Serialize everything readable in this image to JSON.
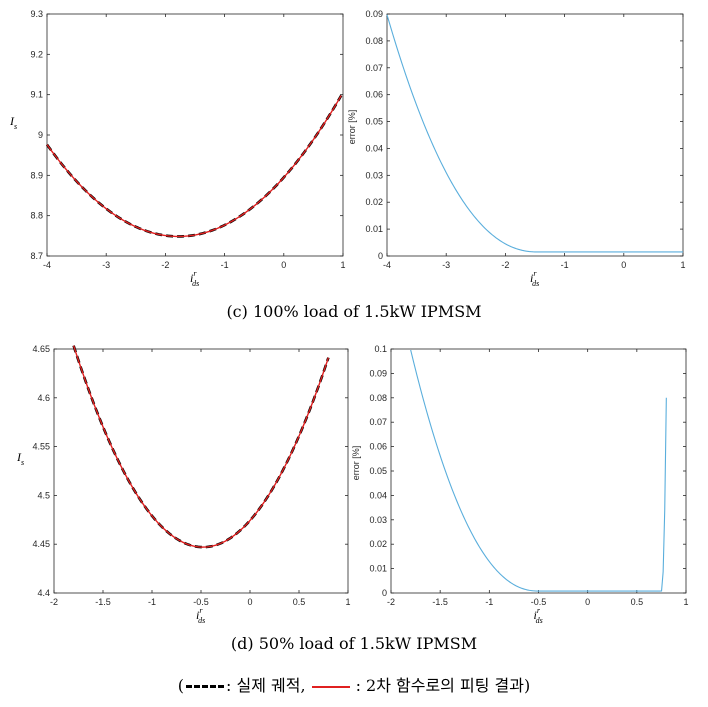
{
  "captions": {
    "c": "(c) 100% load of 1.5kW IPMSM",
    "d": "(d) 50% load of 1.5kW IPMSM"
  },
  "legend": {
    "open": "(",
    "actual": ": 실제 궤적,",
    "fit": ": 2차 함수로의 피팅 결과)"
  },
  "colors": {
    "actual": "#000000",
    "fit": "#e02020",
    "error": "#5aaedc"
  },
  "chart_data": [
    {
      "id": "c-left",
      "type": "line",
      "xlabel_main": "i",
      "xlabel_sup": "r",
      "xlabel_sub": "ds",
      "ylabel_main": "I",
      "ylabel_sub": "s",
      "xlim": [
        -4,
        1
      ],
      "ylim": [
        8.7,
        9.3
      ],
      "xticks": [
        -4,
        -3,
        -2,
        -1,
        0,
        1
      ],
      "yticks": [
        8.7,
        8.8,
        8.9,
        9.0,
        9.1,
        9.2,
        9.3
      ],
      "ytick_labels": [
        "8.7",
        "8.8",
        "8.9",
        "9",
        "9.1",
        "9.2",
        "9.3"
      ],
      "grid": false,
      "series": [
        {
          "role": "actual",
          "style": "dashed",
          "quad": [
            8.7485,
            -1.78,
            0.0462
          ],
          "xrange": [
            -4,
            0.97
          ]
        },
        {
          "role": "fit",
          "style": "solid",
          "quad": [
            8.7485,
            -1.78,
            0.0462
          ],
          "xrange": [
            -4,
            0.97
          ]
        }
      ]
    },
    {
      "id": "c-right",
      "type": "line",
      "xlabel_main": "i",
      "xlabel_sup": "r",
      "xlabel_sub": "ds",
      "ylabel": "error [%]",
      "xlim": [
        -4,
        1
      ],
      "ylim": [
        0,
        0.09
      ],
      "xticks": [
        -4,
        -3,
        -2,
        -1,
        0,
        1
      ],
      "yticks": [
        0,
        0.01,
        0.02,
        0.03,
        0.04,
        0.05,
        0.06,
        0.07,
        0.08,
        0.09
      ],
      "ytick_labels": [
        "0",
        "0.01",
        "0.02",
        "0.03",
        "0.04",
        "0.05",
        "0.06",
        "0.07",
        "0.08",
        "0.09"
      ],
      "grid": false,
      "series": [
        {
          "role": "error",
          "style": "solid",
          "quartic": [
            0.0015,
            -1.45,
            1.15,
            0.0858
          ],
          "xrange": [
            -4,
            1
          ]
        }
      ]
    },
    {
      "id": "d-left",
      "type": "line",
      "xlabel_main": "i",
      "xlabel_sup": "r",
      "xlabel_sub": "ds",
      "ylabel_main": "I",
      "ylabel_sub": "s",
      "xlim": [
        -2,
        1
      ],
      "ylim": [
        4.4,
        4.65
      ],
      "xticks": [
        -2,
        -1.5,
        -1,
        -0.5,
        0,
        0.5,
        1
      ],
      "yticks": [
        4.4,
        4.45,
        4.5,
        4.55,
        4.6,
        4.65
      ],
      "ytick_labels": [
        "4.4",
        "4.45",
        "4.5",
        "4.55",
        "4.6",
        "4.65"
      ],
      "grid": false,
      "series": [
        {
          "role": "actual",
          "style": "dashed",
          "quad": [
            4.447,
            -0.48,
            0.1185
          ],
          "xrange": [
            -1.8,
            0.8
          ]
        },
        {
          "role": "fit",
          "style": "solid",
          "quad": [
            4.447,
            -0.48,
            0.1185
          ],
          "xrange": [
            -1.8,
            0.8
          ]
        }
      ]
    },
    {
      "id": "d-right",
      "type": "line",
      "xlabel_main": "i",
      "xlabel_sup": "r",
      "xlabel_sub": "ds",
      "ylabel": "error [%]",
      "xlim": [
        -2,
        1
      ],
      "ylim": [
        0,
        0.1
      ],
      "xticks": [
        -2,
        -1.5,
        -1,
        -0.5,
        0,
        0.5,
        1
      ],
      "yticks": [
        0,
        0.01,
        0.02,
        0.03,
        0.04,
        0.05,
        0.06,
        0.07,
        0.08,
        0.09,
        0.1
      ],
      "ytick_labels": [
        "0",
        "0.01",
        "0.02",
        "0.03",
        "0.04",
        "0.05",
        "0.06",
        "0.07",
        "0.08",
        "0.09",
        "0.1"
      ],
      "grid": false,
      "series": [
        {
          "role": "error",
          "style": "solid",
          "quartic": [
            0.0008,
            -0.5,
            0.75,
            0.08
          ],
          "xrange": [
            -1.8,
            0.8
          ]
        }
      ]
    }
  ]
}
